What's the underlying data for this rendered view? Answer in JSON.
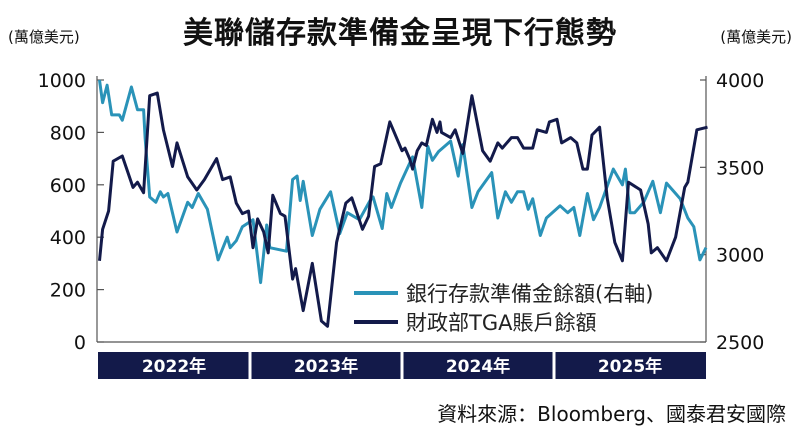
{
  "chart_data": {
    "type": "line",
    "title": "美聯儲存款準備金呈現下行態勢",
    "ylabel_left": "(萬億美元)",
    "ylabel_right": "(萬億美元)",
    "ylim_left": [
      0,
      1000
    ],
    "ylim_right": [
      2500,
      4000
    ],
    "yticks_left": [
      "0",
      "200",
      "400",
      "600",
      "800",
      "1000"
    ],
    "yticks_right": [
      "2500",
      "3000",
      "3500",
      "4000"
    ],
    "xlim": [
      2022,
      2026
    ],
    "xticks": [
      "2022年",
      "2023年",
      "2024年",
      "2025年"
    ],
    "grid": false,
    "legend_placement": "bottom-right",
    "colors": {
      "reserves": "#2a93b8",
      "tga": "#131a4a"
    },
    "series": [
      {
        "name": "銀行存款準備金餘額(右軸)",
        "axis": "right",
        "x": [
          2022.01,
          2022.03,
          2022.06,
          2022.09,
          2022.14,
          2022.16,
          2022.22,
          2022.26,
          2022.3,
          2022.31,
          2022.34,
          2022.38,
          2022.41,
          2022.43,
          2022.46,
          2022.52,
          2022.59,
          2022.62,
          2022.66,
          2022.72,
          2022.79,
          2022.85,
          2022.87,
          2022.91,
          2022.95,
          2023.02,
          2023.07,
          2023.11,
          2023.13,
          2023.24,
          2023.28,
          2023.31,
          2023.33,
          2023.35,
          2023.41,
          2023.46,
          2023.53,
          2023.59,
          2023.64,
          2023.72,
          2023.79,
          2023.81,
          2023.87,
          2023.9,
          2023.93,
          2023.99,
          2024.07,
          2024.13,
          2024.17,
          2024.2,
          2024.24,
          2024.32,
          2024.37,
          2024.4,
          2024.46,
          2024.5,
          2024.59,
          2024.63,
          2024.68,
          2024.72,
          2024.76,
          2024.8,
          2024.83,
          2024.86,
          2024.91,
          2024.95,
          2025.04,
          2025.09,
          2025.13,
          2025.17,
          2025.22,
          2025.26,
          2025.3,
          2025.39,
          2025.45,
          2025.47,
          2025.5,
          2025.53,
          2025.59,
          2025.65,
          2025.7,
          2025.74,
          2025.8,
          2025.83,
          2025.88,
          2025.92,
          2025.96,
          2026.0
        ],
        "values": [
          4000,
          3870,
          3970,
          3800,
          3800,
          3770,
          3960,
          3830,
          3830,
          3670,
          3330,
          3300,
          3360,
          3330,
          3350,
          3130,
          3300,
          3270,
          3350,
          3260,
          2970,
          3100,
          3040,
          3080,
          3160,
          3200,
          2840,
          3170,
          3040,
          3020,
          3430,
          3450,
          3310,
          3420,
          3110,
          3260,
          3360,
          3120,
          3240,
          3200,
          3310,
          3330,
          3150,
          3350,
          3270,
          3410,
          3560,
          3270,
          3620,
          3540,
          3590,
          3650,
          3450,
          3630,
          3270,
          3360,
          3470,
          3210,
          3360,
          3300,
          3360,
          3360,
          3260,
          3320,
          3110,
          3210,
          3280,
          3240,
          3270,
          3110,
          3350,
          3200,
          3270,
          3490,
          3400,
          3490,
          3240,
          3240,
          3300,
          3420,
          3240,
          3410,
          3350,
          3320,
          3210,
          3160,
          2970,
          3040
        ]
      },
      {
        "name": "財政部TGA賬戶餘額",
        "axis": "left",
        "x": [
          2022.01,
          2022.03,
          2022.07,
          2022.1,
          2022.16,
          2022.23,
          2022.26,
          2022.3,
          2022.34,
          2022.39,
          2022.43,
          2022.49,
          2022.52,
          2022.59,
          2022.65,
          2022.7,
          2022.78,
          2022.82,
          2022.87,
          2022.91,
          2022.95,
          2022.99,
          2023.02,
          2023.05,
          2023.09,
          2023.12,
          2023.15,
          2023.2,
          2023.23,
          2023.28,
          2023.3,
          2023.35,
          2023.41,
          2023.47,
          2023.51,
          2023.57,
          2023.63,
          2023.67,
          2023.74,
          2023.78,
          2023.82,
          2023.86,
          2023.92,
          2024.0,
          2024.02,
          2024.05,
          2024.07,
          2024.1,
          2024.13,
          2024.16,
          2024.2,
          2024.23,
          2024.25,
          2024.26,
          2024.32,
          2024.35,
          2024.4,
          2024.46,
          2024.53,
          2024.58,
          2024.63,
          2024.66,
          2024.72,
          2024.76,
          2024.8,
          2024.86,
          2024.89,
          2024.95,
          2024.97,
          2025.02,
          2025.05,
          2025.11,
          2025.15,
          2025.19,
          2025.22,
          2025.25,
          2025.3,
          2025.35,
          2025.4,
          2025.45,
          2025.49,
          2025.57,
          2025.62,
          2025.64,
          2025.68,
          2025.74,
          2025.8,
          2025.86,
          2025.88,
          2025.94,
          2026.01
        ],
        "values": [
          310,
          430,
          500,
          690,
          710,
          590,
          610,
          570,
          940,
          950,
          810,
          670,
          760,
          630,
          580,
          620,
          700,
          620,
          630,
          530,
          490,
          500,
          360,
          470,
          420,
          340,
          560,
          490,
          480,
          240,
          280,
          120,
          300,
          80,
          60,
          380,
          530,
          550,
          430,
          480,
          670,
          680,
          840,
          730,
          740,
          700,
          660,
          730,
          760,
          750,
          850,
          800,
          840,
          800,
          780,
          810,
          720,
          940,
          730,
          690,
          760,
          740,
          780,
          780,
          740,
          740,
          810,
          800,
          840,
          850,
          760,
          780,
          760,
          660,
          660,
          790,
          820,
          550,
          380,
          310,
          610,
          580,
          450,
          340,
          360,
          310,
          400,
          590,
          610,
          810,
          820
        ]
      }
    ]
  },
  "source": "資料來源：Bloomberg、國泰君安國際"
}
